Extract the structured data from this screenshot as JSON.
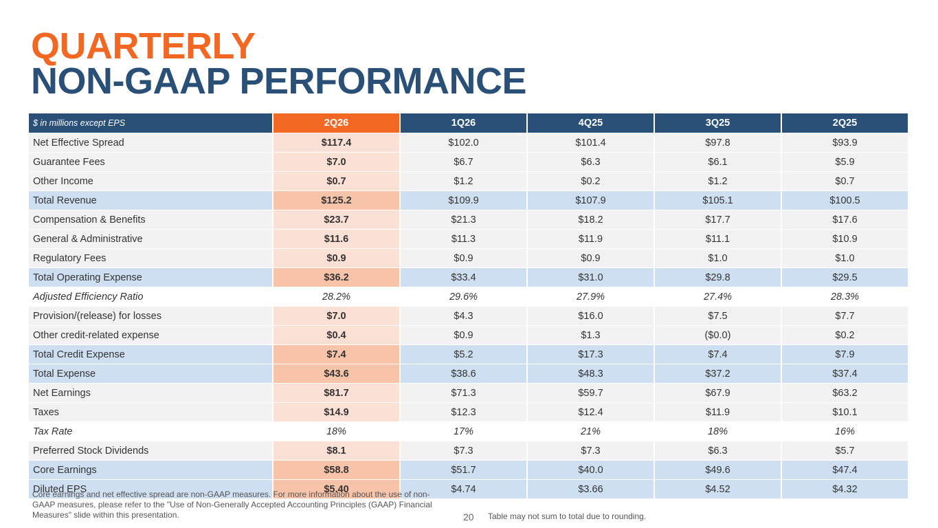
{
  "title": {
    "line1": "QUARTERLY",
    "line2": "NON-GAAP PERFORMANCE"
  },
  "table": {
    "header_label": "$ in millions except EPS",
    "columns": [
      "2Q26",
      "1Q26",
      "4Q25",
      "3Q25",
      "2Q25"
    ],
    "rows": [
      {
        "label": "Net Effective Spread",
        "style": "normal",
        "values": [
          "$117.4",
          "$102.0",
          "$101.4",
          "$97.8",
          "$93.9"
        ]
      },
      {
        "label": "Guarantee Fees",
        "style": "normal",
        "values": [
          "$7.0",
          "$6.7",
          "$6.3",
          "$6.1",
          "$5.9"
        ]
      },
      {
        "label": "Other Income",
        "style": "normal",
        "values": [
          "$0.7",
          "$1.2",
          "$0.2",
          "$1.2",
          "$0.7"
        ]
      },
      {
        "label": "Total Revenue",
        "style": "total",
        "values": [
          "$125.2",
          "$109.9",
          "$107.9",
          "$105.1",
          "$100.5"
        ]
      },
      {
        "label": "Compensation & Benefits",
        "style": "normal",
        "values": [
          "$23.7",
          "$21.3",
          "$18.2",
          "$17.7",
          "$17.6"
        ]
      },
      {
        "label": "General & Administrative",
        "style": "normal",
        "values": [
          "$11.6",
          "$11.3",
          "$11.9",
          "$11.1",
          "$10.9"
        ]
      },
      {
        "label": "Regulatory Fees",
        "style": "normal",
        "values": [
          "$0.9",
          "$0.9",
          "$0.9",
          "$1.0",
          "$1.0"
        ]
      },
      {
        "label": "Total Operating Expense",
        "style": "total",
        "values": [
          "$36.2",
          "$33.4",
          "$31.0",
          "$29.8",
          "$29.5"
        ]
      },
      {
        "label": "Adjusted Efficiency Ratio",
        "style": "italic",
        "values": [
          "28.2%",
          "29.6%",
          "27.9%",
          "27.4%",
          "28.3%"
        ]
      },
      {
        "label": "Provision/(release) for losses",
        "style": "normal",
        "values": [
          "$7.0",
          "$4.3",
          "$16.0",
          "$7.5",
          "$7.7"
        ]
      },
      {
        "label": "Other credit-related expense",
        "style": "normal",
        "values": [
          "$0.4",
          "$0.9",
          "$1.3",
          "($0.0)",
          "$0.2"
        ]
      },
      {
        "label": "Total Credit Expense",
        "style": "total",
        "values": [
          "$7.4",
          "$5.2",
          "$17.3",
          "$7.4",
          "$7.9"
        ]
      },
      {
        "label": "Total Expense",
        "style": "total",
        "values": [
          "$43.6",
          "$38.6",
          "$48.3",
          "$37.2",
          "$37.4"
        ]
      },
      {
        "label": "Net Earnings",
        "style": "normal",
        "values": [
          "$81.7",
          "$71.3",
          "$59.7",
          "$67.9",
          "$63.2"
        ]
      },
      {
        "label": "Taxes",
        "style": "normal",
        "values": [
          "$14.9",
          "$12.3",
          "$12.4",
          "$11.9",
          "$10.1"
        ]
      },
      {
        "label": "Tax Rate",
        "style": "italic",
        "values": [
          "18%",
          "17%",
          "21%",
          "18%",
          "16%"
        ]
      },
      {
        "label": "Preferred Stock Dividends",
        "style": "normal",
        "values": [
          "$8.1",
          "$7.3",
          "$7.3",
          "$6.3",
          "$5.7"
        ]
      },
      {
        "label": "Core Earnings",
        "style": "total",
        "values": [
          "$58.8",
          "$51.7",
          "$40.0",
          "$49.6",
          "$47.4"
        ]
      },
      {
        "label": "Diluted EPS",
        "style": "total",
        "values": [
          "$5.40",
          "$4.74",
          "$3.66",
          "$4.52",
          "$4.32"
        ]
      }
    ]
  },
  "footer": {
    "note": "Core earnings and net effective spread are non-GAAP measures. For more information about the use of non-GAAP measures, please refer to the \"Use of Non-Generally Accepted Accounting Principles (GAAP) Financial Measures\" slide within this presentation.",
    "page_number": "20",
    "rounding_note": "Table may not sum to total due to rounding."
  },
  "colors": {
    "orange": "#f26722",
    "navy": "#2a5078",
    "light_blue": "#cddff0",
    "light_gray": "#f2f2f2",
    "light_orange": "#fbe0d5",
    "mid_orange": "#f8c4a9"
  }
}
